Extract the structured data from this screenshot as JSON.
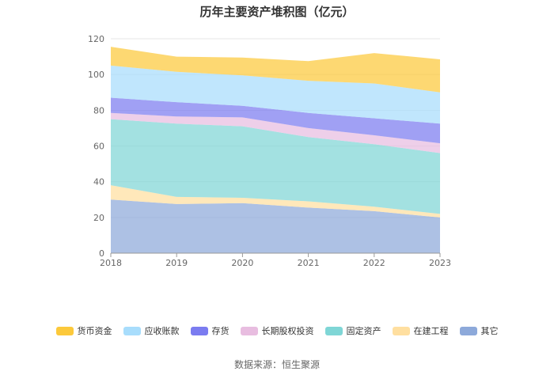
{
  "chart_data": {
    "type": "area",
    "stacked": true,
    "title": "历年主要资产堆积图（亿元）",
    "x": [
      "2018",
      "2019",
      "2020",
      "2021",
      "2022",
      "2023"
    ],
    "ylim": [
      0,
      120
    ],
    "yticks": [
      0,
      20,
      40,
      60,
      80,
      100,
      120
    ],
    "grid": true,
    "legend_position": "bottom",
    "series": [
      {
        "name": "货币资金",
        "color": "#fcc93b",
        "values": [
          10.5,
          8.5,
          10.0,
          11.0,
          17.0,
          18.5
        ]
      },
      {
        "name": "应收账款",
        "color": "#a8ddfc",
        "values": [
          18.0,
          17.0,
          17.0,
          18.0,
          19.5,
          17.5
        ]
      },
      {
        "name": "存货",
        "color": "#7b7cf0",
        "values": [
          8.5,
          8.0,
          6.5,
          8.5,
          9.5,
          11.0
        ]
      },
      {
        "name": "长期股权投资",
        "color": "#e8bde0",
        "values": [
          3.5,
          4.0,
          5.0,
          5.0,
          5.0,
          5.5
        ]
      },
      {
        "name": "固定资产",
        "color": "#7fd6d6",
        "values": [
          37.0,
          41.0,
          40.0,
          36.0,
          35.0,
          34.0
        ]
      },
      {
        "name": "在建工程",
        "color": "#ffdfa0",
        "values": [
          8.0,
          4.0,
          3.0,
          3.5,
          2.5,
          2.0
        ]
      },
      {
        "name": "其它",
        "color": "#8da9da",
        "values": [
          30.0,
          27.5,
          28.0,
          25.5,
          23.5,
          20.0
        ]
      }
    ]
  },
  "source": "数据来源：恒生聚源"
}
